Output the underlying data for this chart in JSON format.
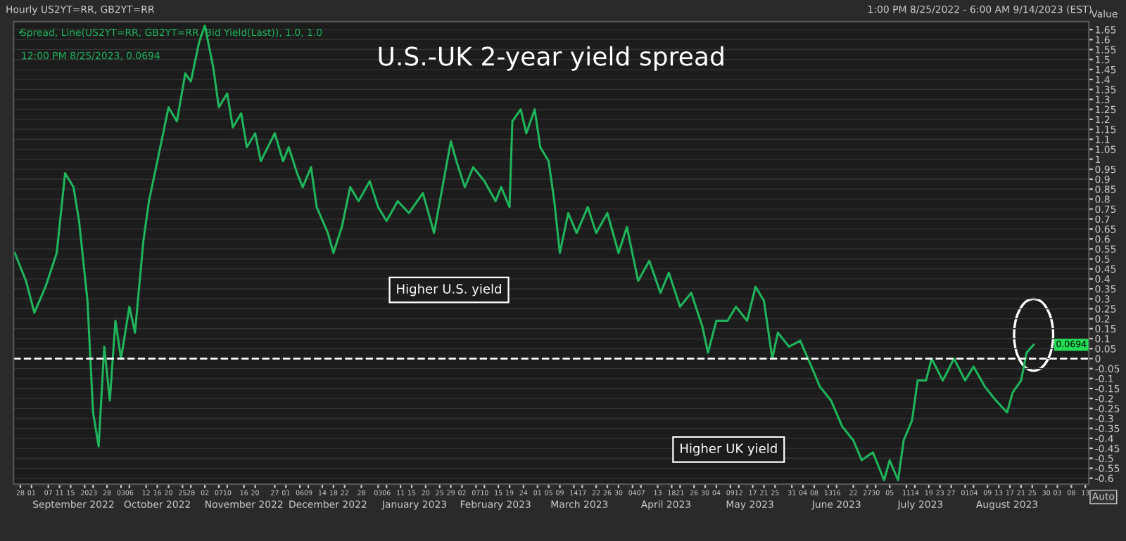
{
  "chart_data": {
    "type": "line",
    "title": "U.S.-UK 2-year yield spread",
    "ylabel": "Value",
    "annotations": [
      "Hourly US2YT=RR, GB2YT=RR",
      "1:00 PM 8/25/2022 - 6:00 AM 9/14/2023 (EST)",
      "12:00 PM 8/25/2023, 0.0694",
      "Higher U.S. yield",
      "Higher UK yield",
      "0.0694",
      "Auto"
    ],
    "x": [
      "2022-08-26",
      "2022-08-30",
      "2022-09-02",
      "2022-09-06",
      "2022-09-10",
      "2022-09-13",
      "2022-09-16",
      "2022-09-18",
      "2022-09-21",
      "2022-09-23",
      "2022-09-25",
      "2022-09-27",
      "2022-09-29",
      "2022-10-01",
      "2022-10-03",
      "2022-10-06",
      "2022-10-08",
      "2022-10-11",
      "2022-10-13",
      "2022-10-16",
      "2022-10-20",
      "2022-10-23",
      "2022-10-26",
      "2022-10-28",
      "2022-10-31",
      "2022-11-02",
      "2022-11-05",
      "2022-11-07",
      "2022-11-10",
      "2022-11-12",
      "2022-11-15",
      "2022-11-17",
      "2022-11-20",
      "2022-11-22",
      "2022-11-27",
      "2022-11-30",
      "2022-12-02",
      "2022-12-05",
      "2022-12-07",
      "2022-12-10",
      "2022-12-12",
      "2022-12-16",
      "2022-12-18",
      "2022-12-21",
      "2022-12-24",
      "2022-12-27",
      "2022-12-31",
      "2023-01-03",
      "2023-01-06",
      "2023-01-10",
      "2023-01-14",
      "2023-01-19",
      "2023-01-23",
      "2023-01-26",
      "2023-01-29",
      "2023-01-31",
      "2023-02-03",
      "2023-02-06",
      "2023-02-10",
      "2023-02-14",
      "2023-02-16",
      "2023-02-19",
      "2023-02-20",
      "2023-02-23",
      "2023-02-25",
      "2023-02-28",
      "2023-03-02",
      "2023-03-05",
      "2023-03-07",
      "2023-03-09",
      "2023-03-12",
      "2023-03-15",
      "2023-03-19",
      "2023-03-22",
      "2023-03-26",
      "2023-03-30",
      "2023-04-02",
      "2023-04-06",
      "2023-04-10",
      "2023-04-14",
      "2023-04-17",
      "2023-04-21",
      "2023-04-25",
      "2023-04-29",
      "2023-05-01",
      "2023-05-04",
      "2023-05-08",
      "2023-05-11",
      "2023-05-15",
      "2023-05-18",
      "2023-05-21",
      "2023-05-24",
      "2023-05-26",
      "2023-05-30",
      "2023-06-03",
      "2023-06-07",
      "2023-06-10",
      "2023-06-14",
      "2023-06-18",
      "2023-06-22",
      "2023-06-25",
      "2023-06-29",
      "2023-07-03",
      "2023-07-05",
      "2023-07-08",
      "2023-07-10",
      "2023-07-13",
      "2023-07-15",
      "2023-07-18",
      "2023-07-20",
      "2023-07-24",
      "2023-07-28",
      "2023-08-01",
      "2023-08-04",
      "2023-08-08",
      "2023-08-12",
      "2023-08-16",
      "2023-08-18",
      "2023-08-21",
      "2023-08-23",
      "2023-08-25T12:00"
    ],
    "series": [
      {
        "name": "Spread, Line(US2YT=RR, GB2YT=RR, Bid Yield(Last)), 1.0, 1.0",
        "color": "#1fb55a",
        "values": [
          0.53,
          0.39,
          0.23,
          0.36,
          0.53,
          0.93,
          0.86,
          0.69,
          0.29,
          -0.27,
          -0.44,
          0.06,
          -0.21,
          0.19,
          0.0,
          0.26,
          0.13,
          0.59,
          0.79,
          0.99,
          1.26,
          1.19,
          1.43,
          1.39,
          1.59,
          1.67,
          1.46,
          1.26,
          1.33,
          1.16,
          1.23,
          1.06,
          1.13,
          0.99,
          1.13,
          0.99,
          1.06,
          0.93,
          0.86,
          0.96,
          0.76,
          0.63,
          0.53,
          0.66,
          0.86,
          0.79,
          0.89,
          0.76,
          0.69,
          0.79,
          0.73,
          0.83,
          0.63,
          0.86,
          1.09,
          0.99,
          0.86,
          0.96,
          0.89,
          0.79,
          0.86,
          0.76,
          1.19,
          1.25,
          1.13,
          1.25,
          1.06,
          0.99,
          0.79,
          0.53,
          0.73,
          0.63,
          0.76,
          0.63,
          0.73,
          0.53,
          0.66,
          0.39,
          0.49,
          0.33,
          0.43,
          0.26,
          0.33,
          0.16,
          0.03,
          0.19,
          0.19,
          0.26,
          0.19,
          0.36,
          0.29,
          0.0,
          0.13,
          0.06,
          0.09,
          -0.04,
          -0.14,
          -0.21,
          -0.34,
          -0.41,
          -0.51,
          -0.47,
          -0.61,
          -0.51,
          -0.61,
          -0.41,
          -0.31,
          -0.11,
          -0.11,
          0.0,
          -0.11,
          0.0,
          -0.11,
          -0.04,
          -0.14,
          -0.21,
          -0.27,
          -0.17,
          -0.11,
          0.03,
          0.0694
        ]
      }
    ],
    "xlim": [
      "2022-08-25T13:00",
      "2023-09-14T06:00"
    ],
    "ylim": [
      -0.63,
      1.69
    ],
    "x2lim": [
      "2022-08-25T13:00",
      "2023-09-14T06:00"
    ],
    "yticks": [
      -0.6,
      -0.55,
      -0.5,
      -0.45,
      -0.4,
      -0.35,
      -0.3,
      -0.25,
      -0.2,
      -0.15,
      -0.1,
      -0.05,
      0,
      0.05,
      0.1,
      0.15,
      0.2,
      0.25,
      0.3,
      0.35,
      0.4,
      0.45,
      0.5,
      0.55,
      0.6,
      0.65,
      0.7,
      0.75,
      0.8,
      0.85,
      0.9,
      0.95,
      1,
      1.05,
      1.1,
      1.15,
      1.2,
      1.25,
      1.3,
      1.35,
      1.4,
      1.45,
      1.5,
      1.55,
      1.6,
      1.65
    ],
    "xticks": [
      {
        "value": "2022-08-28",
        "label": "28"
      },
      {
        "value": "2022-09-01",
        "label": "01"
      },
      {
        "value": "2022-09-07",
        "label": "07"
      },
      {
        "value": "2022-09-11",
        "label": "11"
      },
      {
        "value": "2022-09-15",
        "label": "15"
      },
      {
        "value": "2022-09-20",
        "label": "20"
      },
      {
        "value": "2022-09-23",
        "label": "23"
      },
      {
        "value": "2022-09-28",
        "label": "28"
      },
      {
        "value": "2022-10-03",
        "label": "03"
      },
      {
        "value": "2022-10-06",
        "label": "06"
      },
      {
        "value": "2022-10-12",
        "label": "12"
      },
      {
        "value": "2022-10-16",
        "label": "16"
      },
      {
        "value": "2022-10-20",
        "label": "20"
      },
      {
        "value": "2022-10-25",
        "label": "25"
      },
      {
        "value": "2022-10-28",
        "label": "28"
      },
      {
        "value": "2022-11-02",
        "label": "02"
      },
      {
        "value": "2022-11-07",
        "label": "07"
      },
      {
        "value": "2022-11-10",
        "label": "10"
      },
      {
        "value": "2022-11-16",
        "label": "16"
      },
      {
        "value": "2022-11-20",
        "label": "20"
      },
      {
        "value": "2022-11-27",
        "label": "27"
      },
      {
        "value": "2022-12-01",
        "label": "01"
      },
      {
        "value": "2022-12-06",
        "label": "06"
      },
      {
        "value": "2022-12-09",
        "label": "09"
      },
      {
        "value": "2022-12-14",
        "label": "14"
      },
      {
        "value": "2022-12-18",
        "label": "18"
      },
      {
        "value": "2022-12-22",
        "label": "22"
      },
      {
        "value": "2022-12-28",
        "label": "28"
      },
      {
        "value": "2023-01-03",
        "label": "03"
      },
      {
        "value": "2023-01-06",
        "label": "06"
      },
      {
        "value": "2023-01-11",
        "label": "11"
      },
      {
        "value": "2023-01-15",
        "label": "15"
      },
      {
        "value": "2023-01-20",
        "label": "20"
      },
      {
        "value": "2023-01-25",
        "label": "25"
      },
      {
        "value": "2023-01-29",
        "label": "29"
      },
      {
        "value": "2023-02-02",
        "label": "02"
      },
      {
        "value": "2023-02-07",
        "label": "07"
      },
      {
        "value": "2023-02-10",
        "label": "10"
      },
      {
        "value": "2023-02-15",
        "label": "15"
      },
      {
        "value": "2023-02-19",
        "label": "19"
      },
      {
        "value": "2023-02-24",
        "label": "24"
      },
      {
        "value": "2023-03-01",
        "label": "01"
      },
      {
        "value": "2023-03-05",
        "label": "05"
      },
      {
        "value": "2023-03-09",
        "label": "09"
      },
      {
        "value": "2023-03-14",
        "label": "14"
      },
      {
        "value": "2023-03-17",
        "label": "17"
      },
      {
        "value": "2023-03-22",
        "label": "22"
      },
      {
        "value": "2023-03-26",
        "label": "26"
      },
      {
        "value": "2023-03-30",
        "label": "30"
      },
      {
        "value": "2023-04-04",
        "label": "04"
      },
      {
        "value": "2023-04-07",
        "label": "07"
      },
      {
        "value": "2023-04-13",
        "label": "13"
      },
      {
        "value": "2023-04-18",
        "label": "18"
      },
      {
        "value": "2023-04-21",
        "label": "21"
      },
      {
        "value": "2023-04-26",
        "label": "26"
      },
      {
        "value": "2023-04-30",
        "label": "30"
      },
      {
        "value": "2023-05-04",
        "label": "04"
      },
      {
        "value": "2023-05-09",
        "label": "09"
      },
      {
        "value": "2023-05-12",
        "label": "12"
      },
      {
        "value": "2023-05-17",
        "label": "17"
      },
      {
        "value": "2023-05-21",
        "label": "21"
      },
      {
        "value": "2023-05-25",
        "label": "25"
      },
      {
        "value": "2023-05-31",
        "label": "31"
      },
      {
        "value": "2023-06-04",
        "label": "04"
      },
      {
        "value": "2023-06-08",
        "label": "08"
      },
      {
        "value": "2023-06-13",
        "label": "13"
      },
      {
        "value": "2023-06-16",
        "label": "16"
      },
      {
        "value": "2023-06-22",
        "label": "22"
      },
      {
        "value": "2023-06-27",
        "label": "27"
      },
      {
        "value": "2023-06-30",
        "label": "30"
      },
      {
        "value": "2023-07-05",
        "label": "05"
      },
      {
        "value": "2023-07-11",
        "label": "11"
      },
      {
        "value": "2023-07-14",
        "label": "14"
      },
      {
        "value": "2023-07-19",
        "label": "19"
      },
      {
        "value": "2023-07-23",
        "label": "23"
      },
      {
        "value": "2023-07-27",
        "label": "27"
      },
      {
        "value": "2023-08-01",
        "label": "01"
      },
      {
        "value": "2023-08-04",
        "label": "04"
      },
      {
        "value": "2023-08-09",
        "label": "09"
      },
      {
        "value": "2023-08-13",
        "label": "13"
      },
      {
        "value": "2023-08-17",
        "label": "17"
      },
      {
        "value": "2023-08-21",
        "label": "21"
      },
      {
        "value": "2023-08-25",
        "label": "25"
      },
      {
        "value": "2023-08-30",
        "label": "30"
      },
      {
        "value": "2023-09-03",
        "label": "03"
      },
      {
        "value": "2023-09-08",
        "label": "08"
      },
      {
        "value": "2023-09-13",
        "label": "13"
      }
    ],
    "x2ticks": [
      {
        "value": "2022-09-16",
        "label": "September 2022"
      },
      {
        "value": "2022-10-16",
        "label": "October 2022"
      },
      {
        "value": "2022-11-16",
        "label": "November 2022"
      },
      {
        "value": "2022-12-16",
        "label": "December 2022"
      },
      {
        "value": "2023-01-16",
        "label": "January 2023"
      },
      {
        "value": "2023-02-14",
        "label": "February 2023"
      },
      {
        "value": "2023-03-16",
        "label": "March 2023"
      },
      {
        "value": "2023-04-16",
        "label": "April 2023"
      },
      {
        "value": "2023-05-16",
        "label": "May 2023"
      },
      {
        "value": "2023-06-16",
        "label": "June 2023"
      },
      {
        "value": "2023-07-16",
        "label": "July 2023"
      },
      {
        "value": "2023-08-16",
        "label": "August 2023"
      }
    ],
    "ref_lines": [
      {
        "axis": "y",
        "value": 0,
        "color": "#ffffff",
        "line_style": "dashed"
      }
    ],
    "grid": "y",
    "legend": "top left",
    "marker": "none",
    "line_style": "solid"
  }
}
